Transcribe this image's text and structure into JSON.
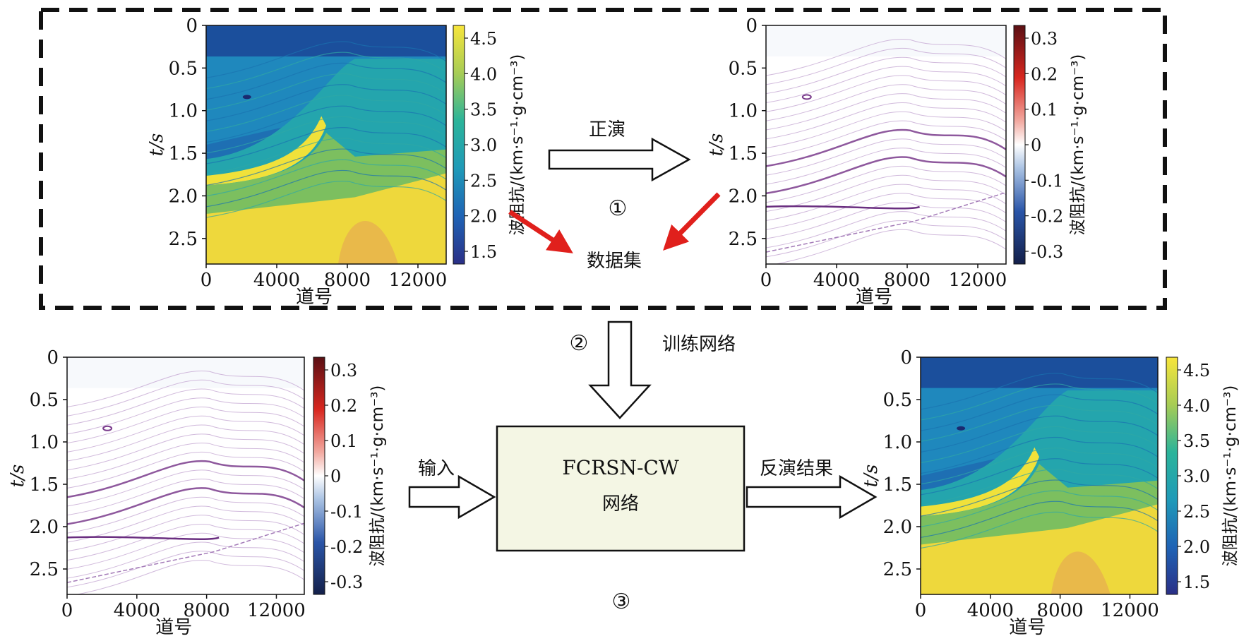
{
  "flow": {
    "step1_label": "正演",
    "step1_num": "①",
    "dataset_label": "数据集",
    "step2_num": "②",
    "step2_label": "训练网络",
    "input_label": "输入",
    "network_line1": "FCRSN-CW",
    "network_line2": "网络",
    "output_label": "反演结果",
    "step3_num": "③"
  },
  "colors": {
    "dashed_border": "#111111",
    "network_box_fill": "#f4f6e4",
    "red_arrow": "#e0201c"
  },
  "panels": [
    {
      "id": "impedance-model-top",
      "kind": "impedance",
      "y_label": "t/s",
      "x_label": "道号",
      "x_ticks": [
        "0",
        "4000",
        "8000",
        "12000"
      ],
      "y_ticks": [
        "0",
        "0.5",
        "1.0",
        "1.5",
        "2.0",
        "2.5"
      ],
      "colorbar_label": "波阻抗/(km·s⁻¹·g·cm⁻³)",
      "colorbar_ticks": [
        "4.5",
        "4.0",
        "3.5",
        "3.0",
        "2.5",
        "2.0",
        "1.5"
      ]
    },
    {
      "id": "reflectivity-top",
      "kind": "reflectivity",
      "y_label": "t/s",
      "x_label": "道号",
      "x_ticks": [
        "0",
        "4000",
        "8000",
        "12000"
      ],
      "y_ticks": [
        "0",
        "0.5",
        "1.0",
        "1.5",
        "2.0",
        "2.5"
      ],
      "colorbar_label": "波阻抗/(km·s⁻¹·g·cm⁻³)",
      "colorbar_ticks": [
        "0.3",
        "0.2",
        "0.1",
        "0",
        "-0.1",
        "-0.2",
        "-0.3"
      ]
    },
    {
      "id": "reflectivity-input",
      "kind": "reflectivity",
      "y_label": "t/s",
      "x_label": "道号",
      "x_ticks": [
        "0",
        "4000",
        "8000",
        "12000"
      ],
      "y_ticks": [
        "0",
        "0.5",
        "1.0",
        "1.5",
        "2.0",
        "2.5"
      ],
      "colorbar_label": "波阻抗/(km·s⁻¹·g·cm⁻³)",
      "colorbar_ticks": [
        "0.3",
        "0.2",
        "0.1",
        "0",
        "-0.1",
        "-0.2",
        "-0.3"
      ]
    },
    {
      "id": "impedance-result",
      "kind": "impedance",
      "y_label": "t/s",
      "x_label": "道号",
      "x_ticks": [
        "0",
        "4000",
        "8000",
        "12000"
      ],
      "y_ticks": [
        "0",
        "0.5",
        "1.0",
        "1.5",
        "2.0",
        "2.5"
      ],
      "colorbar_label": "波阻抗/(km·s⁻¹·g·cm⁻³)",
      "colorbar_ticks": [
        "4.5",
        "4.0",
        "3.5",
        "3.0",
        "2.5",
        "2.0",
        "1.5"
      ]
    }
  ]
}
